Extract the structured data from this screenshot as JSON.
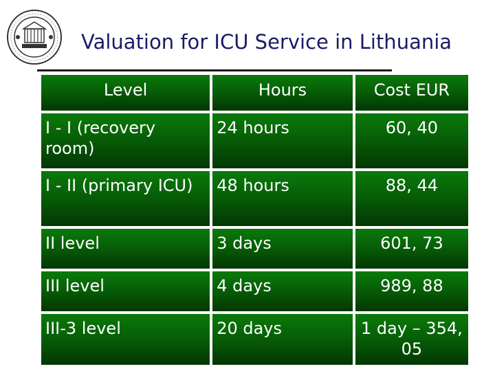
{
  "slide": {
    "title": "Valuation for ICU Service in Lithuania"
  },
  "logo": {
    "icon": "university-seal-icon"
  },
  "table": {
    "headers": [
      "Level",
      "Hours",
      "Cost EUR"
    ],
    "rows": [
      {
        "level": "I - I (recovery room)",
        "hours": "24 hours",
        "cost": "60, 40"
      },
      {
        "level": "I - II (primary ICU)",
        "hours": "48 hours",
        "cost": "88, 44"
      },
      {
        "level": "II level",
        "hours": "3 days",
        "cost": "601, 73"
      },
      {
        "level": "III level",
        "hours": "4 days",
        "cost": "989, 88"
      },
      {
        "level": "III-3 level",
        "hours": "20 days",
        "cost": "1 day – 354, 05"
      }
    ]
  },
  "colors": {
    "title": "#1a1a66",
    "cell_green": "#075f07",
    "cell_text": "#ffffff"
  }
}
